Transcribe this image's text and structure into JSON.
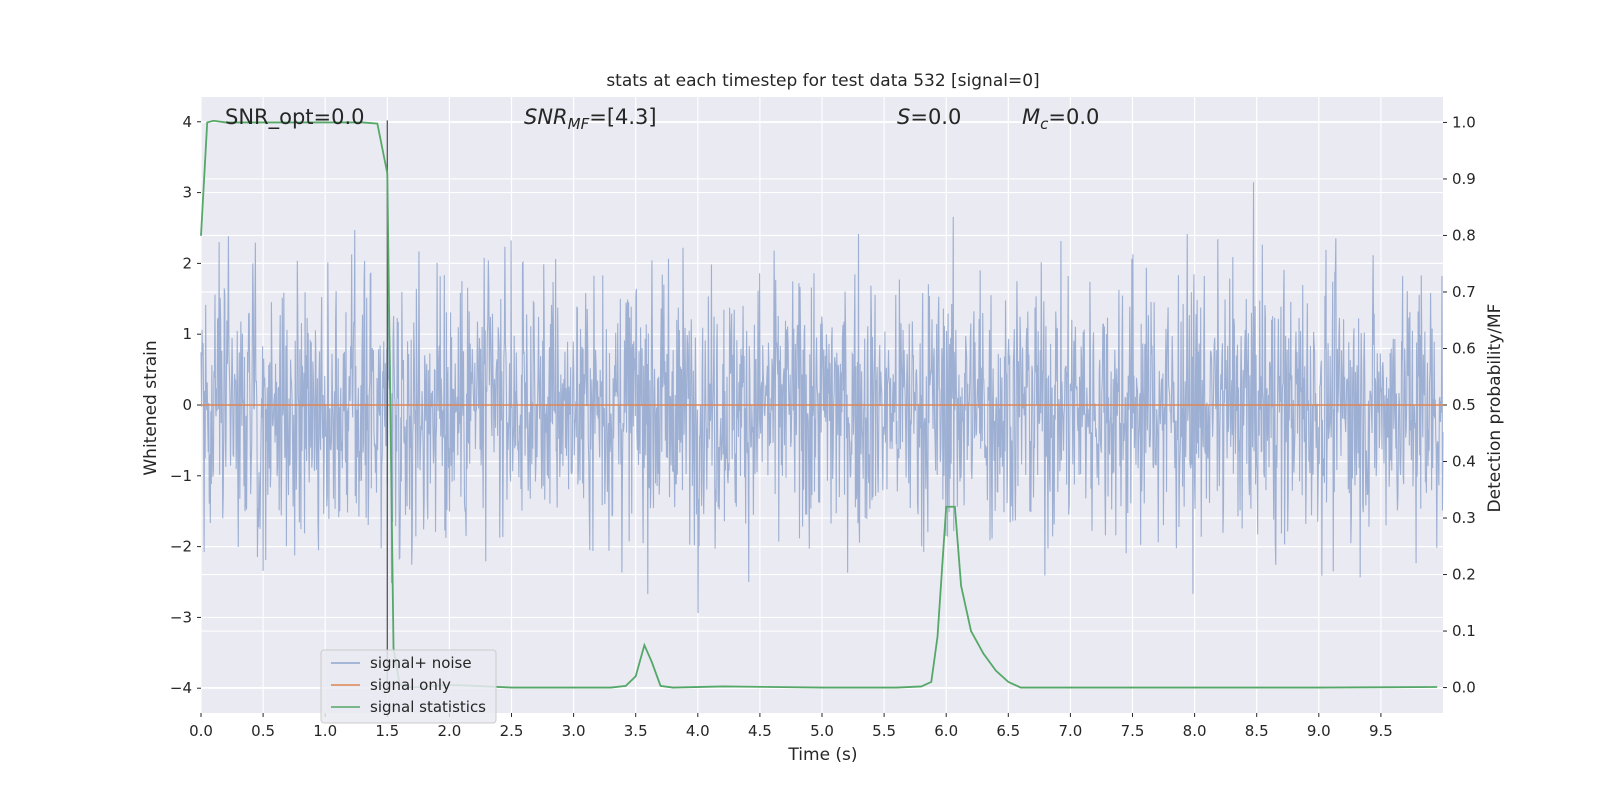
{
  "chart_data": {
    "type": "line",
    "title": "stats at each timestep for test data 532 [signal=0]",
    "xlabel": "Time (s)",
    "ylabel": "Whitened strain",
    "y2label": "Detection probability/MF",
    "xlim": [
      0.0,
      10.0
    ],
    "ylim": [
      -4.35,
      4.35
    ],
    "y2lim": [
      -0.045,
      1.045
    ],
    "xticks": [
      0.0,
      0.5,
      1.0,
      1.5,
      2.0,
      2.5,
      3.0,
      3.5,
      4.0,
      4.5,
      5.0,
      5.5,
      6.0,
      6.5,
      7.0,
      7.5,
      8.0,
      8.5,
      9.0,
      9.5
    ],
    "xtick_labels": [
      "0.0",
      "0.5",
      "1.0",
      "1.5",
      "2.0",
      "2.5",
      "3.0",
      "3.5",
      "4.0",
      "4.5",
      "5.0",
      "5.5",
      "6.0",
      "6.5",
      "7.0",
      "7.5",
      "8.0",
      "8.5",
      "9.0",
      "9.5"
    ],
    "yticks": [
      -4,
      -3,
      -2,
      -1,
      0,
      1,
      2,
      3,
      4
    ],
    "ytick_labels": [
      "−4",
      "−3",
      "−2",
      "−1",
      "0",
      "1",
      "2",
      "3",
      "4"
    ],
    "y2ticks": [
      0.0,
      0.1,
      0.2,
      0.3,
      0.4,
      0.5,
      0.6,
      0.7,
      0.8,
      0.9,
      1.0
    ],
    "y2tick_labels": [
      "0.0",
      "0.1",
      "0.2",
      "0.3",
      "0.4",
      "0.5",
      "0.6",
      "0.7",
      "0.8",
      "0.9",
      "1.0"
    ],
    "grid": true,
    "legend_position": "lower-left",
    "annotations": {
      "snr_opt": "SNR_opt=0.0",
      "snr_mf_main": "SNR",
      "snr_mf_sub": "MF",
      "snr_mf_value": "=[4.3]",
      "s_main": "S",
      "s_value": "=0.0",
      "mc_main": "M",
      "mc_sub": "c",
      "mc_value": "=0.0"
    },
    "marker_line_x": 1.5,
    "series": [
      {
        "name": "signal+ noise",
        "axis": "left",
        "color": "#8fa4cc",
        "description_values": "whitened noise samples, approx. envelope ±2 with peaks to about ±3.7",
        "envelope": {
          "upper_typical": 2.2,
          "lower_typical": -2.2,
          "peak_max": 3.7,
          "peak_min": -3.9
        }
      },
      {
        "name": "signal only",
        "axis": "left",
        "color": "#dd8452",
        "x": [
          0.0,
          10.0
        ],
        "values": [
          0.0,
          0.0
        ]
      },
      {
        "name": "signal statistics",
        "axis": "right",
        "color": "#55a868",
        "x": [
          0.0,
          0.05,
          0.1,
          0.2,
          0.5,
          1.0,
          1.3,
          1.42,
          1.5,
          1.55,
          1.6,
          1.7,
          2.0,
          2.5,
          3.0,
          3.3,
          3.42,
          3.5,
          3.57,
          3.63,
          3.7,
          3.8,
          4.2,
          5.0,
          5.6,
          5.8,
          5.88,
          5.93,
          6.0,
          6.07,
          6.12,
          6.2,
          6.3,
          6.4,
          6.5,
          6.6,
          7.0,
          8.0,
          9.0,
          9.95
        ],
        "values": [
          0.8,
          1.0,
          1.003,
          1.0,
          1.0,
          1.0,
          1.0,
          0.998,
          0.91,
          0.07,
          0.005,
          0.0,
          0.005,
          0.0,
          0.0,
          0.0,
          0.003,
          0.02,
          0.075,
          0.045,
          0.003,
          0.0,
          0.002,
          0.0,
          0.0,
          0.002,
          0.01,
          0.09,
          0.32,
          0.32,
          0.18,
          0.1,
          0.06,
          0.03,
          0.01,
          0.0,
          0.0,
          0.0,
          0.0,
          0.001
        ]
      }
    ]
  }
}
